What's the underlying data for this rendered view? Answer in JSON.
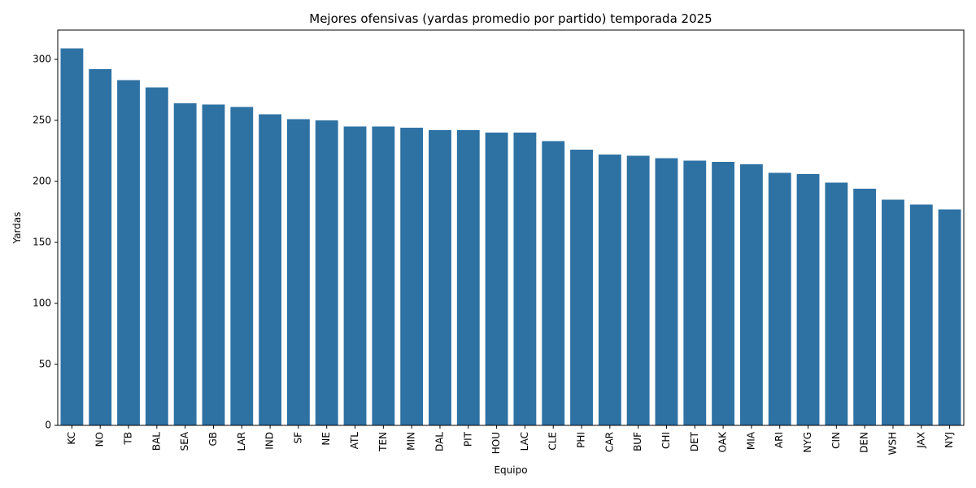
{
  "chart_data": {
    "type": "bar",
    "title": "Mejores ofensivas (yardas promedio por partido) temporada 2025",
    "xlabel": "Equipo",
    "ylabel": "Yardas",
    "categories": [
      "KC",
      "NO",
      "TB",
      "BAL",
      "SEA",
      "GB",
      "LAR",
      "IND",
      "SF",
      "NE",
      "ATL",
      "TEN",
      "MIN",
      "DAL",
      "PIT",
      "HOU",
      "LAC",
      "CLE",
      "PHI",
      "CAR",
      "BUF",
      "CHI",
      "DET",
      "OAK",
      "MIA",
      "ARI",
      "NYG",
      "CIN",
      "DEN",
      "WSH",
      "JAX",
      "NYJ"
    ],
    "values": [
      309,
      292,
      283,
      277,
      264,
      263,
      261,
      255,
      251,
      250,
      245,
      245,
      244,
      242,
      242,
      240,
      240,
      233,
      226,
      222,
      221,
      219,
      217,
      216,
      214,
      207,
      206,
      199,
      194,
      185,
      181,
      177
    ],
    "ylim": [
      0,
      324
    ],
    "yticks": [
      0,
      50,
      100,
      150,
      200,
      250,
      300
    ],
    "grid": false,
    "legend": "none",
    "bar_color": "#2e72a4"
  }
}
